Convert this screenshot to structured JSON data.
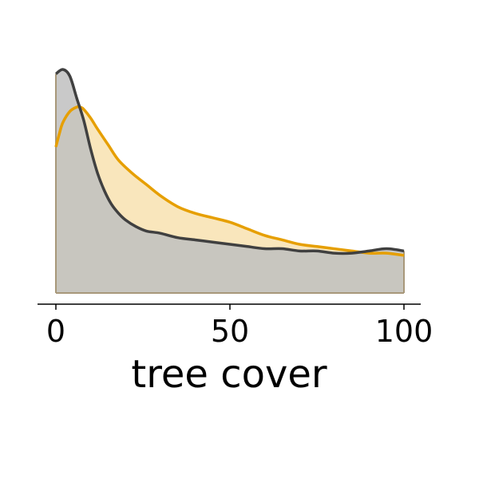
{
  "chart_data": {
    "type": "area",
    "title": "",
    "xlabel": "tree cover",
    "ylabel": "",
    "xlim": [
      -5,
      104
    ],
    "ylim": [
      0,
      1
    ],
    "x_ticks": [
      {
        "value": 0,
        "label": "0"
      },
      {
        "value": 50,
        "label": "50"
      },
      {
        "value": 100,
        "label": "100"
      }
    ],
    "grid": false,
    "y_axis_visible": false,
    "series": [
      {
        "color": "#e69f00",
        "fill": "#f8e2b0",
        "x": [
          0,
          1,
          2,
          4,
          6,
          7,
          8,
          10,
          12,
          15,
          18,
          22,
          26,
          30,
          35,
          40,
          45,
          50,
          55,
          60,
          65,
          70,
          75,
          80,
          85,
          90,
          95,
          100
        ],
        "y": [
          0.66,
          0.72,
          0.77,
          0.82,
          0.84,
          0.84,
          0.83,
          0.79,
          0.74,
          0.67,
          0.6,
          0.54,
          0.49,
          0.44,
          0.39,
          0.36,
          0.34,
          0.32,
          0.29,
          0.26,
          0.24,
          0.22,
          0.21,
          0.2,
          0.19,
          0.18,
          0.18,
          0.17
        ]
      },
      {
        "color": "#404040",
        "fill": "#bfbfbf",
        "x": [
          0,
          2,
          4,
          6,
          8,
          10,
          12,
          14,
          16,
          18,
          20,
          23,
          26,
          30,
          35,
          40,
          45,
          50,
          55,
          60,
          65,
          70,
          75,
          80,
          85,
          90,
          95,
          100
        ],
        "y": [
          0.99,
          1.01,
          0.98,
          0.88,
          0.78,
          0.65,
          0.54,
          0.46,
          0.4,
          0.36,
          0.33,
          0.3,
          0.28,
          0.27,
          0.25,
          0.24,
          0.23,
          0.22,
          0.21,
          0.2,
          0.2,
          0.19,
          0.19,
          0.18,
          0.18,
          0.19,
          0.2,
          0.19
        ]
      }
    ]
  }
}
